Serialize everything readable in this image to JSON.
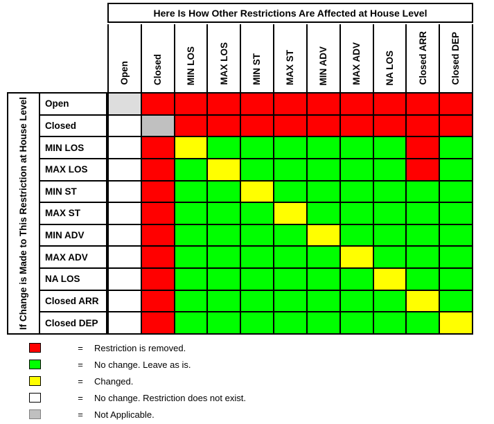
{
  "chart_data": {
    "type": "heatmap",
    "title": "Here Is How Other Restrictions Are Affected at House Level",
    "row_axis_label": "If Change is Made to This Restriction at House Level",
    "columns": [
      "Open",
      "Closed",
      "MIN LOS",
      "MAX LOS",
      "MIN ST",
      "MAX ST",
      "MIN ADV",
      "MAX ADV",
      "NA LOS",
      "Closed ARR",
      "Closed DEP"
    ],
    "rows": [
      "Open",
      "Closed",
      "MIN LOS",
      "MAX LOS",
      "MIN ST",
      "MAX ST",
      "MIN ADV",
      "MAX ADV",
      "NA LOS",
      "Closed ARR",
      "Closed DEP"
    ],
    "cell_colors": {
      "R": "#FF0000",
      "G": "#00FF00",
      "Y": "#FFFF00",
      "W": "#FFFFFF",
      "N": "#C0C0C0",
      "L": "#DDDDDD"
    },
    "cell_meanings": {
      "R": "Restriction is removed.",
      "G": "No change. Leave as is.",
      "Y": "Changed.",
      "W": "No change. Restriction does not exist.",
      "N": "Not Applicable.",
      "L": "Not Applicable."
    },
    "matrix": [
      [
        "L",
        "R",
        "R",
        "R",
        "R",
        "R",
        "R",
        "R",
        "R",
        "R",
        "R"
      ],
      [
        "W",
        "N",
        "R",
        "R",
        "R",
        "R",
        "R",
        "R",
        "R",
        "R",
        "R"
      ],
      [
        "W",
        "R",
        "Y",
        "G",
        "G",
        "G",
        "G",
        "G",
        "G",
        "R",
        "G"
      ],
      [
        "W",
        "R",
        "G",
        "Y",
        "G",
        "G",
        "G",
        "G",
        "G",
        "R",
        "G"
      ],
      [
        "W",
        "R",
        "G",
        "G",
        "Y",
        "G",
        "G",
        "G",
        "G",
        "G",
        "G"
      ],
      [
        "W",
        "R",
        "G",
        "G",
        "G",
        "Y",
        "G",
        "G",
        "G",
        "G",
        "G"
      ],
      [
        "W",
        "R",
        "G",
        "G",
        "G",
        "G",
        "Y",
        "G",
        "G",
        "G",
        "G"
      ],
      [
        "W",
        "R",
        "G",
        "G",
        "G",
        "G",
        "G",
        "Y",
        "G",
        "G",
        "G"
      ],
      [
        "W",
        "R",
        "G",
        "G",
        "G",
        "G",
        "G",
        "G",
        "Y",
        "G",
        "G"
      ],
      [
        "W",
        "R",
        "G",
        "G",
        "G",
        "G",
        "G",
        "G",
        "G",
        "Y",
        "G"
      ],
      [
        "W",
        "R",
        "G",
        "G",
        "G",
        "G",
        "G",
        "G",
        "G",
        "G",
        "Y"
      ]
    ],
    "legend": [
      {
        "code": "R",
        "color": "#FF0000",
        "equals": "=",
        "label": "Restriction is removed."
      },
      {
        "code": "G",
        "color": "#00FF00",
        "equals": "=",
        "label": "No change. Leave as is."
      },
      {
        "code": "Y",
        "color": "#FFFF00",
        "equals": "=",
        "label": "Changed."
      },
      {
        "code": "W",
        "color": "#FFFFFF",
        "equals": "=",
        "label": "No change. Restriction does not exist."
      },
      {
        "code": "N",
        "color": "#C0C0C0",
        "equals": "=",
        "label": "Not Applicable."
      }
    ],
    "grid_line_color": "#000000",
    "legend_position": "bottom-left"
  }
}
